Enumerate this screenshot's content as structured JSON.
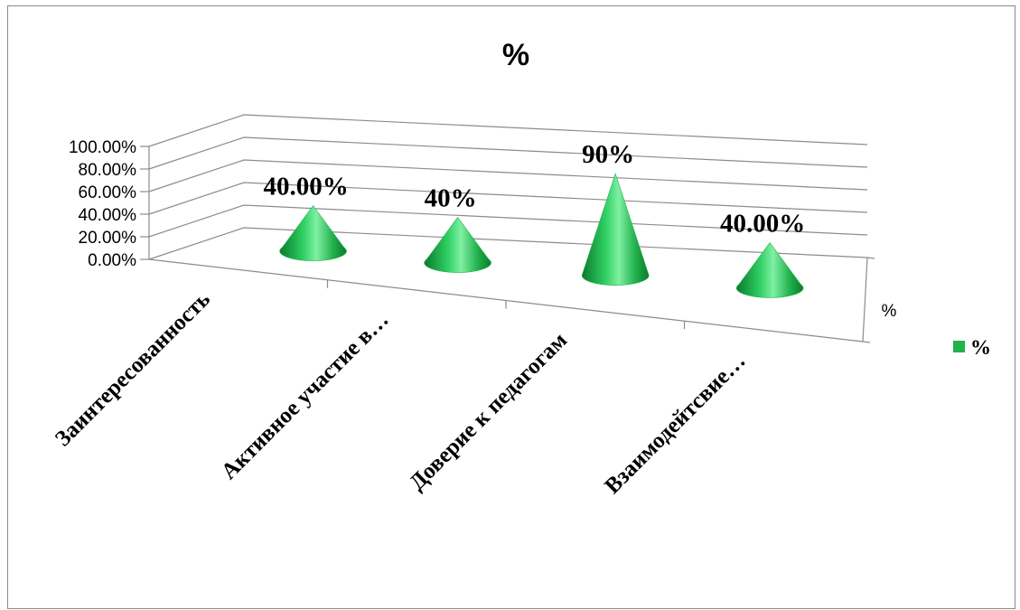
{
  "chart_data": {
    "type": "bar",
    "style": "3d-cone",
    "title": "%",
    "categories": [
      "Заинтересованность",
      "Активное участие в…",
      "Доверие к педагогам",
      "Взаимодейтсвие…"
    ],
    "series": [
      {
        "name": "%",
        "values": [
          0.4,
          0.4,
          0.9,
          0.4
        ],
        "color": "#22b24c"
      }
    ],
    "data_labels": [
      "40.00%",
      "40%",
      "90%",
      "40.00%"
    ],
    "y_tick_labels": [
      "0.00%",
      "20.00%",
      "40.00%",
      "60.00%",
      "80.00%",
      "100.00%"
    ],
    "ylim": [
      0,
      1
    ],
    "depth_axis_label": "%",
    "legend": {
      "position": "right",
      "entries": [
        "%"
      ]
    },
    "grid": true
  }
}
